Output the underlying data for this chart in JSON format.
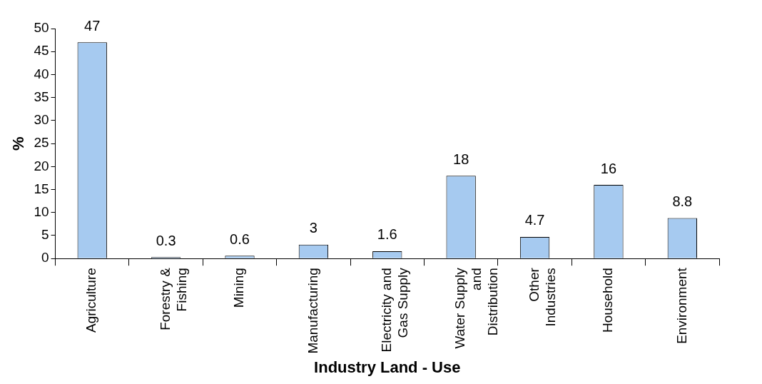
{
  "chart_data": {
    "type": "bar",
    "categories": [
      "Agriculture",
      "Forestry & Fishing",
      "Mining",
      "Manufacturing",
      "Electricity and Gas Supply",
      "Water Supply and Distribution",
      "Other Industries",
      "Household",
      "Environment"
    ],
    "values": [
      47,
      0.3,
      0.6,
      3,
      1.6,
      18,
      4.7,
      16,
      8.8
    ],
    "color": "#a6caf0",
    "xlabel": "Industry Land - Use",
    "ylabel": "%",
    "ylim": [
      0,
      50
    ],
    "yticks": [
      0,
      5,
      10,
      15,
      20,
      25,
      30,
      35,
      40,
      45,
      50
    ],
    "grid": false,
    "legend": false,
    "data_labels": true
  }
}
